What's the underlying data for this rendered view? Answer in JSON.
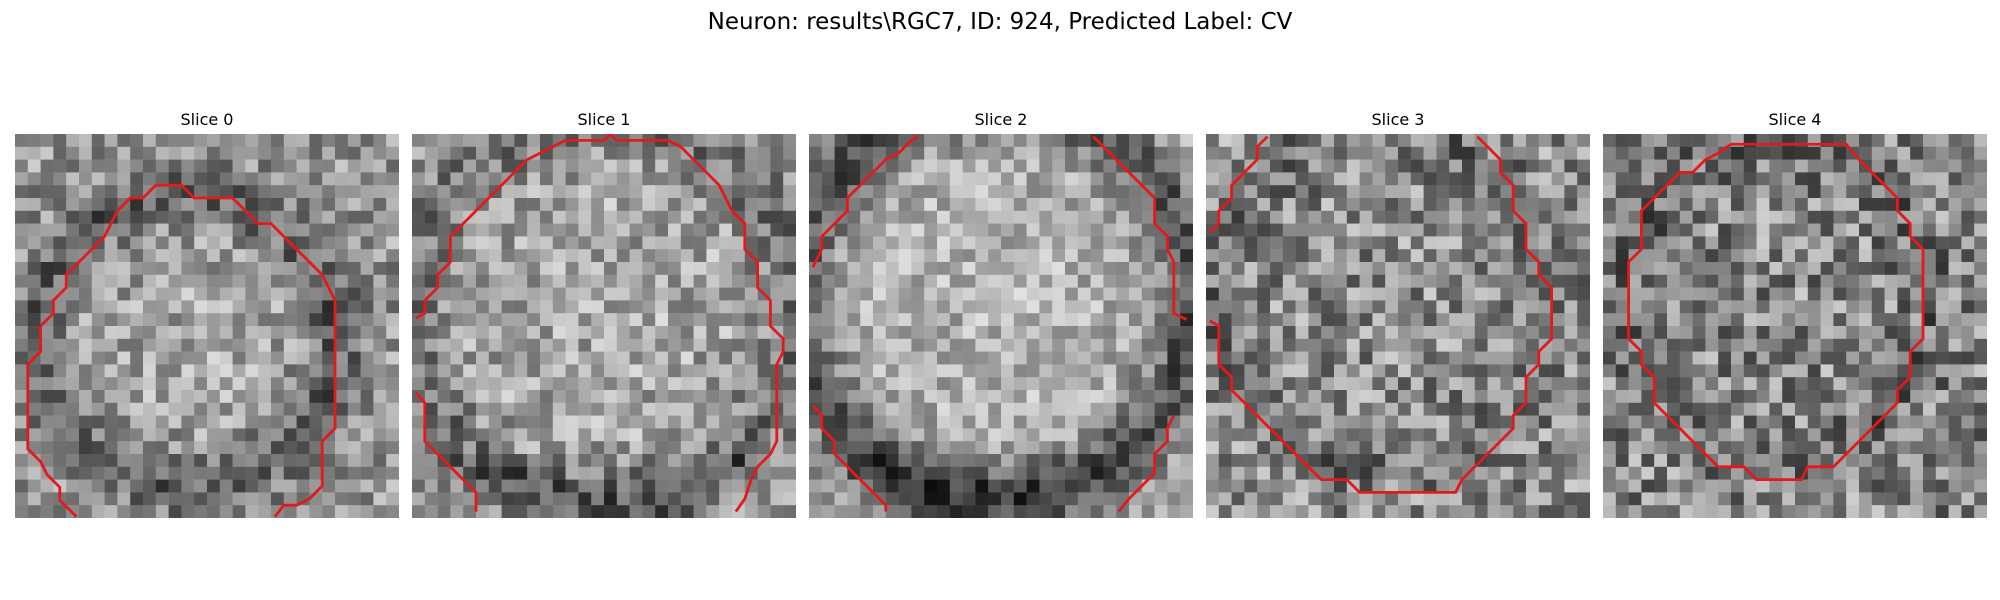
{
  "figure": {
    "title": "Neuron: results\\RGC7, ID: 924, Predicted Label: CV",
    "contour_color": "#e31a1c",
    "colormap": "grayscale"
  },
  "slices": [
    {
      "label": "Slice 0",
      "center_tone": "mid-gray",
      "ring": "dark"
    },
    {
      "label": "Slice 1",
      "center_tone": "light-gray",
      "ring": "dark-bottom"
    },
    {
      "label": "Slice 2",
      "center_tone": "light-gray",
      "ring": "very-dark"
    },
    {
      "label": "Slice 3",
      "center_tone": "mid-gray",
      "ring": "faint"
    },
    {
      "label": "Slice 4",
      "center_tone": "mid-gray",
      "ring": "faint"
    }
  ]
}
